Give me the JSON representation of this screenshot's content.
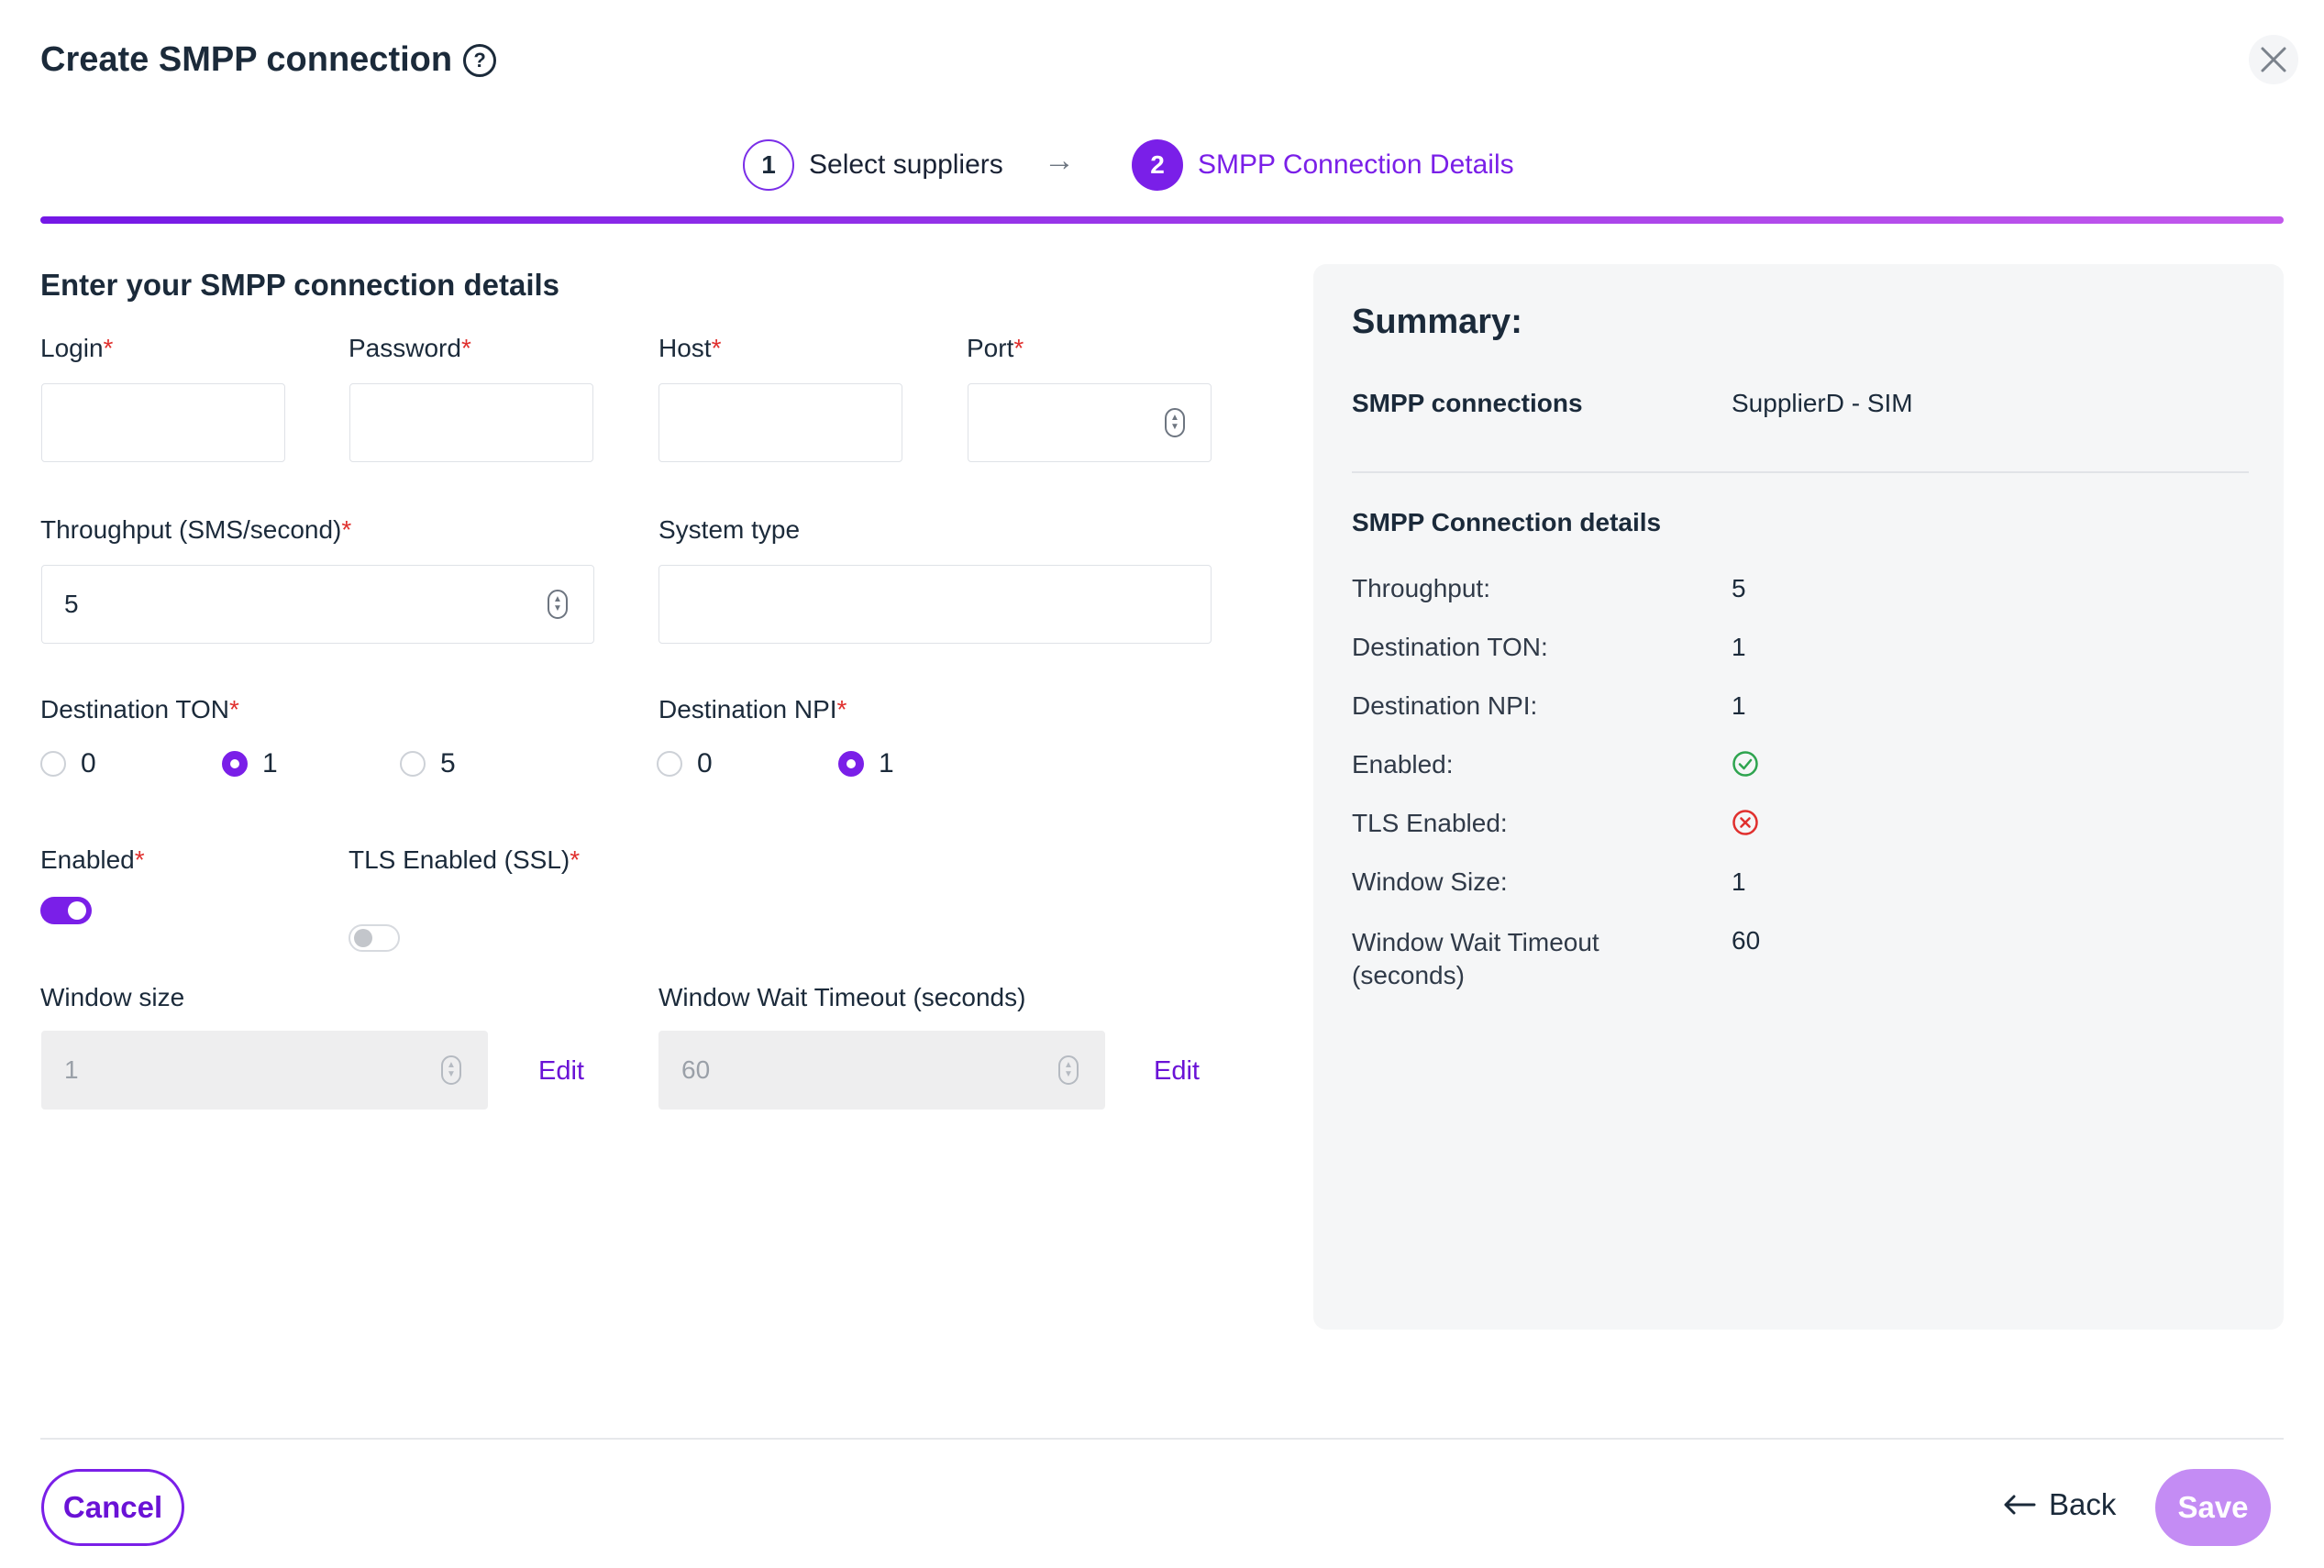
{
  "header": {
    "title": "Create SMPP connection",
    "help_icon": "question-circle-icon",
    "close_icon": "close-x-icon"
  },
  "stepper": {
    "steps": [
      {
        "number": "1",
        "label": "Select suppliers",
        "state": "done"
      },
      {
        "number": "2",
        "label": "SMPP Connection Details",
        "state": "active"
      }
    ],
    "arrow": "→",
    "accent": "#7a1fe8"
  },
  "form": {
    "section_title": "Enter your SMPP connection details",
    "required_mark": "*",
    "login": {
      "label": "Login",
      "value": ""
    },
    "password": {
      "label": "Password",
      "value": ""
    },
    "host": {
      "label": "Host",
      "value": ""
    },
    "port": {
      "label": "Port",
      "value": ""
    },
    "throughput": {
      "label": "Throughput (SMS/second)",
      "value": "5"
    },
    "system_type": {
      "label": "System type",
      "value": ""
    },
    "destination_ton": {
      "label": "Destination TON",
      "options": [
        "0",
        "1",
        "5"
      ],
      "selected": "1"
    },
    "destination_npi": {
      "label": "Destination NPI",
      "options": [
        "0",
        "1"
      ],
      "selected": "1"
    },
    "enabled": {
      "label": "Enabled",
      "on": true
    },
    "tls_enabled": {
      "label": "TLS Enabled (SSL)",
      "on": false
    },
    "window_size": {
      "label": "Window size",
      "value": "1",
      "edit_label": "Edit"
    },
    "window_wait_timeout": {
      "label": "Window Wait Timeout (seconds)",
      "value": "60",
      "edit_label": "Edit"
    }
  },
  "summary": {
    "title": "Summary:",
    "connections_key": "SMPP connections",
    "connections_value": "SupplierD - SIM",
    "details_heading": "SMPP Connection details",
    "rows": [
      {
        "key": "Throughput:",
        "value": "5"
      },
      {
        "key": "Destination TON:",
        "value": "1"
      },
      {
        "key": "Destination NPI:",
        "value": "1"
      },
      {
        "key": "Enabled:",
        "icon": "check-circle-icon",
        "color": "#2ea44f"
      },
      {
        "key": "TLS Enabled:",
        "icon": "x-circle-icon",
        "color": "#e0302e"
      },
      {
        "key": "Window Size:",
        "value": "1"
      },
      {
        "key": "Window Wait Timeout (seconds)",
        "value": "60"
      }
    ]
  },
  "footer": {
    "cancel_label": "Cancel",
    "back_label": "Back",
    "back_icon": "arrow-left-icon",
    "save_label": "Save"
  }
}
